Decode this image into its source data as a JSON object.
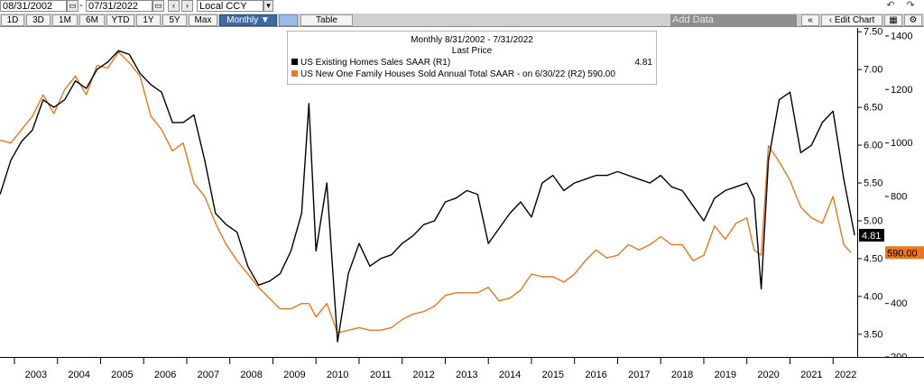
{
  "toolbar": {
    "start_date": "08/31/2002",
    "end_date": "07/31/2022",
    "dash": "-",
    "currency": "Local CCY",
    "add_data": "Add Data",
    "edit_chart": "Edit Chart",
    "table_label": "Table",
    "ranges": [
      "1D",
      "3D",
      "1M",
      "6M",
      "YTD",
      "1Y",
      "5Y",
      "Max"
    ],
    "frequency": "Monthly ▼"
  },
  "legend": {
    "title": "Monthly 8/31/2002 - 7/31/2022",
    "subtitle": "Last Price",
    "row1_label": "US Existing Homes Sales SAAR  (R1)",
    "row1_value": "4.81",
    "row2_label": "US New One Family Houses Sold Annual Total SAAR -  on 6/30/22  (R2) 590.00"
  },
  "last_labels": {
    "r1": "4.81",
    "r2": "590.00"
  },
  "colors": {
    "existing": "#000000",
    "new": "#e87722"
  },
  "chart_data": {
    "type": "line",
    "x_range": [
      "2002-08-31",
      "2022-07-31"
    ],
    "x_ticks": [
      "2003",
      "2004",
      "2005",
      "2006",
      "2007",
      "2008",
      "2009",
      "2010",
      "2011",
      "2012",
      "2013",
      "2014",
      "2015",
      "2016",
      "2017",
      "2018",
      "2019",
      "2020",
      "2021",
      "2022"
    ],
    "y_left": {
      "range": [
        3.2,
        7.55
      ],
      "ticks": [
        "3.50",
        "4.00",
        "4.50",
        "5.00",
        "5.50",
        "6.00",
        "6.50",
        "7.00",
        "7.50"
      ]
    },
    "y_right": {
      "range": [
        200,
        1430
      ],
      "ticks": [
        "200",
        "400",
        "600",
        "800",
        "1000",
        "1200",
        "1400"
      ]
    },
    "series": [
      {
        "name": "US Existing Homes Sales SAAR  (R1)",
        "axis": "left",
        "x": [
          "2002-09",
          "2002-12",
          "2003-03",
          "2003-06",
          "2003-09",
          "2003-12",
          "2004-03",
          "2004-06",
          "2004-09",
          "2004-12",
          "2005-03",
          "2005-06",
          "2005-09",
          "2005-12",
          "2006-03",
          "2006-06",
          "2006-09",
          "2006-12",
          "2007-03",
          "2007-06",
          "2007-09",
          "2007-12",
          "2008-03",
          "2008-06",
          "2008-09",
          "2008-12",
          "2009-03",
          "2009-06",
          "2009-09",
          "2009-11",
          "2010-01",
          "2010-04",
          "2010-07",
          "2010-10",
          "2011-01",
          "2011-04",
          "2011-07",
          "2011-10",
          "2012-01",
          "2012-04",
          "2012-07",
          "2012-10",
          "2013-01",
          "2013-04",
          "2013-07",
          "2013-10",
          "2014-01",
          "2014-04",
          "2014-07",
          "2014-10",
          "2015-01",
          "2015-04",
          "2015-07",
          "2015-10",
          "2016-01",
          "2016-04",
          "2016-07",
          "2016-10",
          "2017-01",
          "2017-04",
          "2017-07",
          "2017-10",
          "2018-01",
          "2018-04",
          "2018-07",
          "2018-10",
          "2019-01",
          "2019-04",
          "2019-07",
          "2019-10",
          "2020-01",
          "2020-03",
          "2020-05",
          "2020-07",
          "2020-10",
          "2021-01",
          "2021-04",
          "2021-07",
          "2021-10",
          "2022-01",
          "2022-04",
          "2022-07"
        ],
        "values": [
          5.35,
          5.8,
          6.05,
          6.2,
          6.6,
          6.5,
          6.6,
          6.85,
          6.75,
          7.0,
          7.1,
          7.25,
          7.2,
          6.95,
          6.8,
          6.7,
          6.3,
          6.3,
          6.4,
          5.8,
          5.1,
          4.95,
          4.85,
          4.4,
          4.15,
          4.2,
          4.3,
          4.6,
          5.1,
          6.55,
          4.6,
          5.5,
          3.4,
          4.3,
          4.7,
          4.4,
          4.5,
          4.55,
          4.7,
          4.8,
          4.95,
          5.0,
          5.25,
          5.3,
          5.4,
          5.35,
          4.7,
          4.9,
          5.1,
          5.25,
          5.05,
          5.5,
          5.6,
          5.4,
          5.5,
          5.55,
          5.6,
          5.6,
          5.65,
          5.6,
          5.55,
          5.5,
          5.6,
          5.45,
          5.4,
          5.2,
          5.0,
          5.3,
          5.4,
          5.45,
          5.5,
          5.3,
          4.1,
          5.8,
          6.6,
          6.7,
          5.9,
          6.0,
          6.3,
          6.45,
          5.55,
          4.81
        ]
      },
      {
        "name": "US New One Family Houses Sold Annual Total SAAR",
        "axis": "right",
        "x": [
          "2002-09",
          "2002-12",
          "2003-03",
          "2003-06",
          "2003-09",
          "2003-12",
          "2004-03",
          "2004-06",
          "2004-09",
          "2004-12",
          "2005-03",
          "2005-06",
          "2005-09",
          "2005-12",
          "2006-03",
          "2006-06",
          "2006-09",
          "2006-12",
          "2007-03",
          "2007-06",
          "2007-09",
          "2007-12",
          "2008-03",
          "2008-06",
          "2008-09",
          "2008-12",
          "2009-03",
          "2009-06",
          "2009-09",
          "2009-11",
          "2010-01",
          "2010-04",
          "2010-07",
          "2010-10",
          "2011-01",
          "2011-04",
          "2011-07",
          "2011-10",
          "2012-01",
          "2012-04",
          "2012-07",
          "2012-10",
          "2013-01",
          "2013-04",
          "2013-07",
          "2013-10",
          "2014-01",
          "2014-04",
          "2014-07",
          "2014-10",
          "2015-01",
          "2015-04",
          "2015-07",
          "2015-10",
          "2016-01",
          "2016-04",
          "2016-07",
          "2016-10",
          "2017-01",
          "2017-04",
          "2017-07",
          "2017-10",
          "2018-01",
          "2018-04",
          "2018-07",
          "2018-10",
          "2019-01",
          "2019-04",
          "2019-07",
          "2019-10",
          "2020-01",
          "2020-03",
          "2020-05",
          "2020-07",
          "2020-10",
          "2021-01",
          "2021-04",
          "2021-07",
          "2021-10",
          "2022-01",
          "2022-04",
          "2022-06"
        ],
        "values": [
          1010,
          1000,
          1050,
          1100,
          1180,
          1110,
          1200,
          1250,
          1180,
          1290,
          1280,
          1340,
          1300,
          1250,
          1100,
          1050,
          970,
          1000,
          850,
          800,
          700,
          620,
          560,
          510,
          460,
          420,
          380,
          380,
          400,
          400,
          350,
          400,
          290,
          300,
          310,
          300,
          300,
          310,
          340,
          360,
          370,
          390,
          430,
          440,
          440,
          440,
          460,
          410,
          420,
          450,
          510,
          500,
          500,
          480,
          510,
          560,
          600,
          570,
          580,
          620,
          600,
          620,
          650,
          620,
          620,
          560,
          580,
          690,
          640,
          700,
          720,
          600,
          580,
          990,
          930,
          860,
          760,
          720,
          700,
          800,
          620,
          590
        ]
      }
    ]
  }
}
